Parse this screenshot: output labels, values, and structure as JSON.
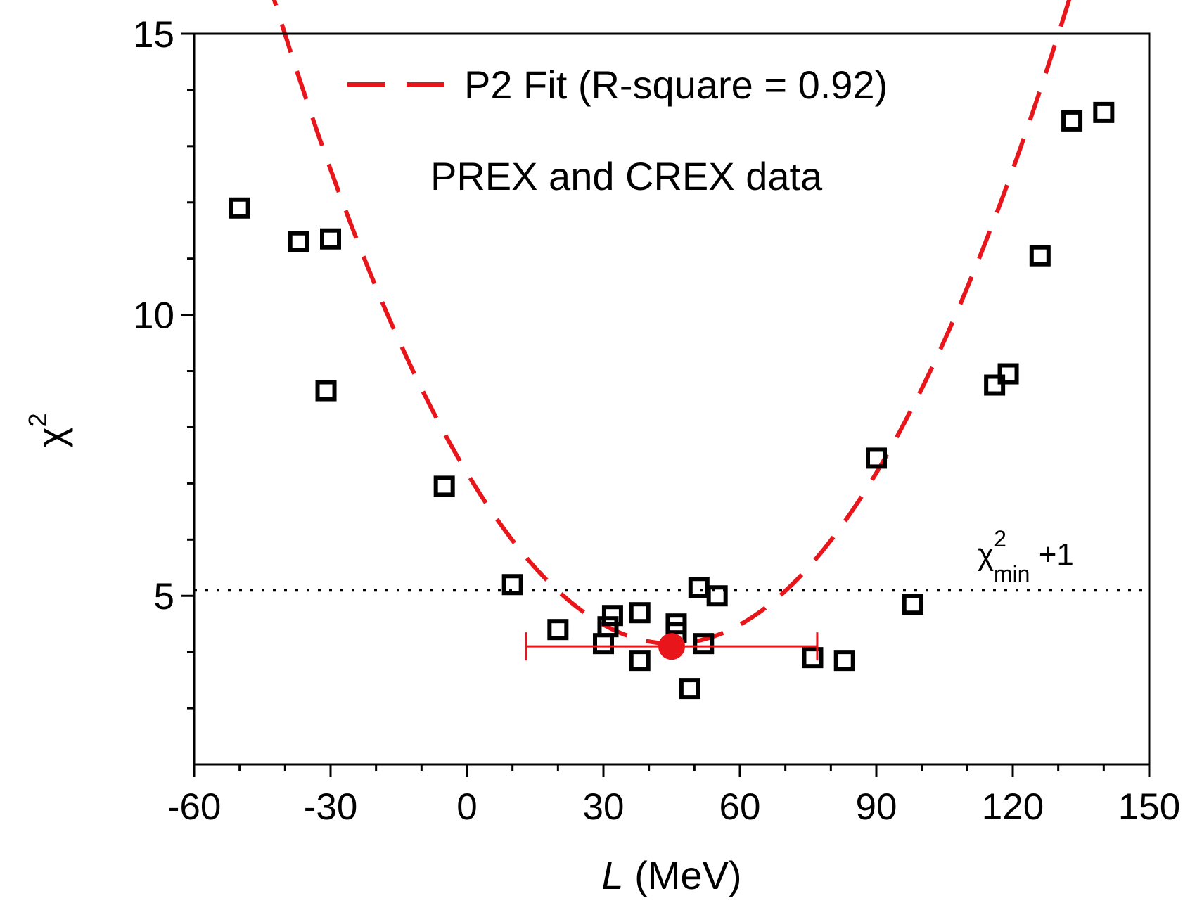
{
  "chart_data": {
    "type": "scatter",
    "title": "",
    "xlabel": {
      "italic": "L",
      "rest": " (MeV)"
    },
    "ylabel": {
      "base": "χ",
      "sup": "2"
    },
    "xlim": [
      -60,
      150
    ],
    "ylim": [
      2,
      15
    ],
    "xticks": [
      -60,
      -30,
      0,
      30,
      60,
      90,
      120,
      150
    ],
    "xtick_labels": [
      "-60",
      "-30",
      "0",
      "30",
      "60",
      "90",
      "120",
      "150"
    ],
    "yticks": [
      5,
      10,
      15
    ],
    "ytick_labels": [
      "5",
      "10",
      "15"
    ],
    "x_minor_step": 10,
    "y_minor_step": 1,
    "legend": {
      "label": "P2 Fit (R-square = 0.92)",
      "position": "top-center"
    },
    "annotation": "PREX and CREX data",
    "threshold": {
      "y": 5.1,
      "label_base": "χ",
      "label_sup": "2",
      "label_sub": "min",
      "label_suffix": " +1"
    },
    "colors": {
      "fit": "#e8151b",
      "points": "#000000",
      "threshold": "#000000",
      "best_fit": "#e8151b"
    },
    "series": [
      {
        "marker": "open-square",
        "x": [
          -50,
          -37,
          -30,
          -31,
          -5,
          10,
          20,
          30,
          31,
          32,
          38,
          38,
          46,
          46,
          49,
          51,
          52,
          55,
          76,
          83,
          90,
          98,
          116,
          119,
          126,
          133,
          140
        ],
        "y": [
          11.9,
          11.3,
          11.35,
          8.65,
          6.95,
          5.2,
          4.4,
          4.15,
          4.45,
          4.65,
          3.85,
          4.7,
          4.35,
          4.5,
          3.35,
          5.15,
          4.15,
          5.0,
          3.9,
          3.85,
          7.45,
          4.85,
          8.75,
          8.95,
          11.05,
          13.45,
          13.6
        ]
      }
    ],
    "fit": {
      "type": "quadratic",
      "vertex_x": 45,
      "vertex_y": 4.15,
      "a": 0.0015,
      "x_range": [
        -50,
        140
      ]
    },
    "best_fit_point": {
      "x": 45,
      "y": 4.1,
      "xerr_low": 13,
      "xerr_high": 77
    }
  }
}
